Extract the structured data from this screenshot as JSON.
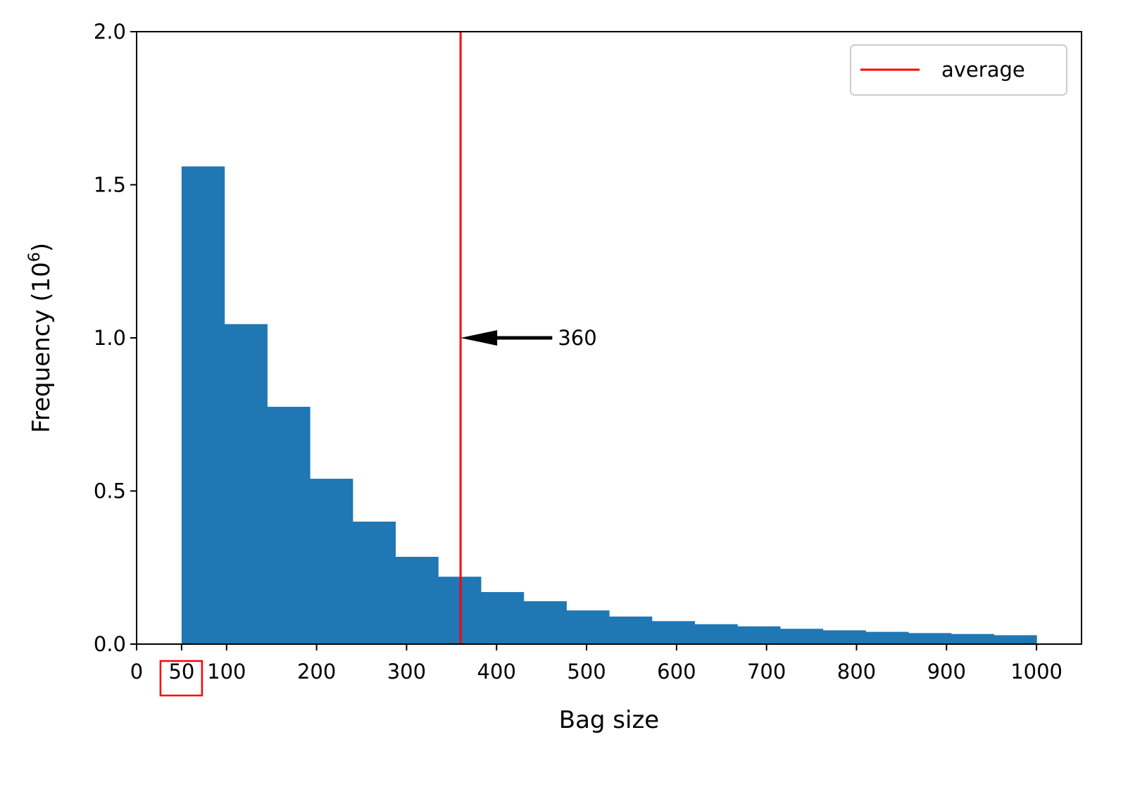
{
  "chart_data": {
    "type": "bar",
    "xlabel": "Bag size",
    "ylabel_main": "Frequency (10",
    "ylabel_sup": "6",
    "ylabel_close": ")",
    "xlim": [
      0,
      1050
    ],
    "ylim": [
      0,
      2.0
    ],
    "xticks": [
      {
        "value": 0,
        "label": "0"
      },
      {
        "value": 50,
        "label": "50"
      },
      {
        "value": 100,
        "label": "100"
      },
      {
        "value": 200,
        "label": "200"
      },
      {
        "value": 300,
        "label": "300"
      },
      {
        "value": 400,
        "label": "400"
      },
      {
        "value": 500,
        "label": "500"
      },
      {
        "value": 600,
        "label": "600"
      },
      {
        "value": 700,
        "label": "700"
      },
      {
        "value": 800,
        "label": "800"
      },
      {
        "value": 900,
        "label": "900"
      },
      {
        "value": 1000,
        "label": "1000"
      }
    ],
    "yticks": [
      {
        "value": 0.0,
        "label": "0.0"
      },
      {
        "value": 0.5,
        "label": "0.5"
      },
      {
        "value": 1.0,
        "label": "1.0"
      },
      {
        "value": 1.5,
        "label": "1.5"
      },
      {
        "value": 2.0,
        "label": "2.0"
      }
    ],
    "bin_edges": [
      50,
      97.5,
      145,
      192.5,
      240,
      287.5,
      335,
      382.5,
      430,
      477.5,
      525,
      572.5,
      620,
      667.5,
      715,
      762.5,
      810,
      857.5,
      905,
      952.5,
      1000
    ],
    "values": [
      1.56,
      1.045,
      0.775,
      0.54,
      0.4,
      0.285,
      0.22,
      0.17,
      0.14,
      0.11,
      0.09,
      0.075,
      0.065,
      0.058,
      0.05,
      0.045,
      0.04,
      0.036,
      0.033,
      0.029
    ],
    "bar_color": "#1f77b4",
    "average": {
      "x": 360,
      "color": "#ff0000",
      "legend_label": "average"
    },
    "annotation": {
      "text": "360",
      "x": 360,
      "y": 1.0,
      "text_x": 465,
      "color": "#000000"
    },
    "highlight_tick": {
      "label": "50",
      "color": "#ff0000"
    },
    "grid": false,
    "legend_position": "top-right"
  }
}
